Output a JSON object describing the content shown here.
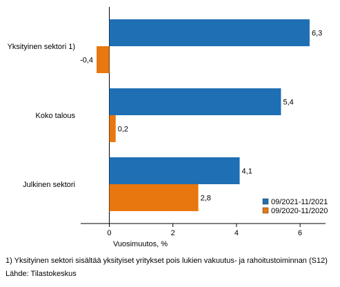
{
  "chart_data": {
    "type": "bar",
    "orientation": "horizontal",
    "categories": [
      "Yksityinen sektori 1)",
      "Koko talous",
      "Julkinen sektori"
    ],
    "series": [
      {
        "name": "09/2021-11/2021",
        "color": "#1f6fb4",
        "values": [
          6.3,
          5.4,
          4.1
        ],
        "labels": [
          "6,3",
          "5,4",
          "4,1"
        ]
      },
      {
        "name": "09/2020-11/2020",
        "color": "#e8770f",
        "values": [
          -0.4,
          0.2,
          2.8
        ],
        "labels": [
          "-0,4",
          "0,2",
          "2,8"
        ]
      }
    ],
    "xlabel": "Vuosimuutos, %",
    "xlim": [
      -0.9,
      6.8
    ],
    "xticks": [
      0,
      2,
      4,
      6
    ],
    "xtick_labels": [
      "0",
      "2",
      "4",
      "6"
    ],
    "grid": false,
    "legend_position": "bottom-right"
  },
  "footnotes": {
    "note": "1) Yksityinen sektori sisältää yksityiset yritykset pois lukien vakuutus- ja rahoitustoiminnan (S12)",
    "source": "Lähde: Tilastokeskus"
  }
}
